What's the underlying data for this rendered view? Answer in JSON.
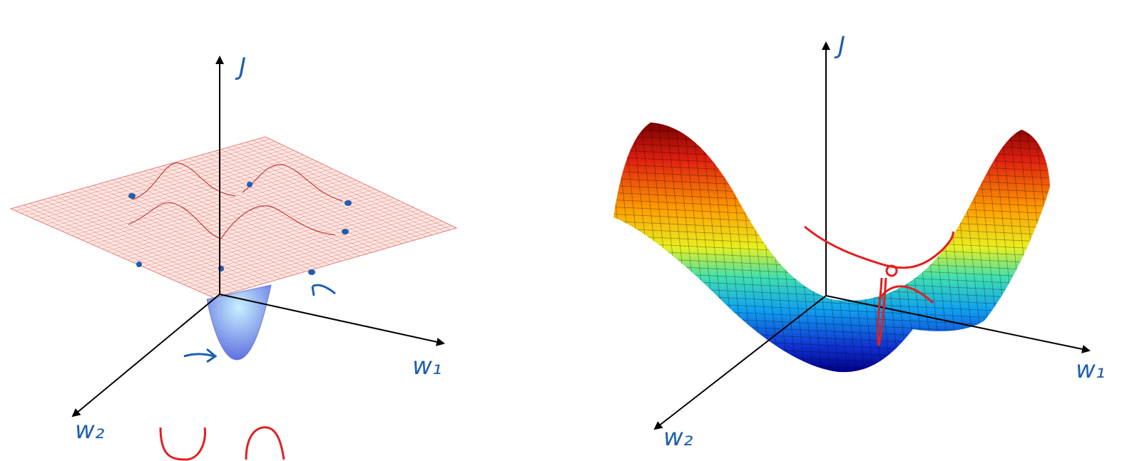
{
  "panels": [
    {
      "axes": {
        "vertical": "J",
        "right": "w₁",
        "left": "w₂"
      }
    },
    {
      "axes": {
        "vertical": "J",
        "right": "w₁",
        "left": "w₂"
      }
    }
  ]
}
